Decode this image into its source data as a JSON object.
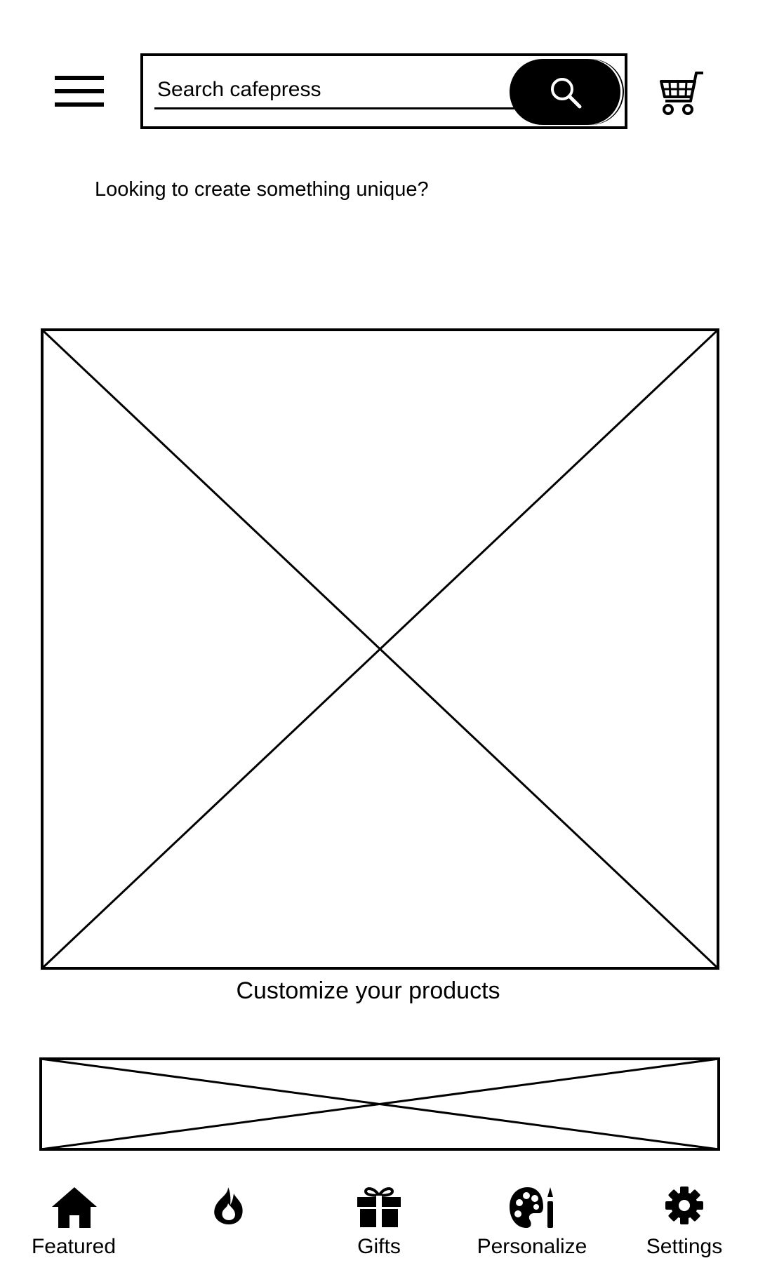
{
  "header": {
    "search": {
      "placeholder": "Search cafepress"
    }
  },
  "main": {
    "tagline": "Looking to create something unique?",
    "hero_caption": "Customize your products"
  },
  "bottom_nav": {
    "items": [
      {
        "label": "Featured",
        "icon": "home-icon"
      },
      {
        "label": "",
        "icon": "flame-icon"
      },
      {
        "label": "Gifts",
        "icon": "gift-icon"
      },
      {
        "label": "Personalize",
        "icon": "palette-icon"
      },
      {
        "label": "Settings",
        "icon": "gear-icon"
      }
    ]
  }
}
